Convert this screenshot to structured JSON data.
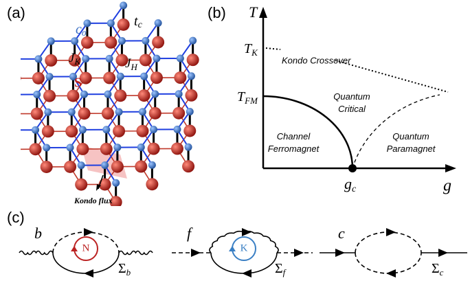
{
  "panel_a": {
    "label": "(a)",
    "c_sigma": {
      "main": "c",
      "sub": "σ"
    },
    "t_c": {
      "main": "t",
      "sub": "c"
    },
    "J_K": {
      "main": "J",
      "sub": "K"
    },
    "J_H": {
      "main": "J",
      "sub": "H"
    },
    "spin": "S⃗",
    "flux": "Kondo flux"
  },
  "panel_b": {
    "label": "(b)",
    "y_axis": "T",
    "x_axis": "g",
    "T_K": {
      "main": "T",
      "sub": "K"
    },
    "T_FM": {
      "main": "T",
      "sub": "FM"
    },
    "g_c": {
      "main": "g",
      "sub": "c"
    },
    "crossover": "Kondo Crossover",
    "critical": [
      "Quantum",
      "Critical"
    ],
    "ferromagnet": [
      "Channel",
      "Ferromagnet"
    ],
    "paramagnet": [
      "Quantum",
      "Paramagnet"
    ]
  },
  "panel_c": {
    "label": "(c)",
    "diagrams": [
      {
        "field": "b",
        "loop": "N",
        "self_energy": {
          "main": "Σ",
          "sub": "b"
        }
      },
      {
        "field": "f",
        "loop": "K",
        "self_energy": {
          "main": "Σ",
          "sub": "f"
        }
      },
      {
        "field": "c",
        "self_energy": {
          "main": "Σ",
          "sub": "c"
        }
      }
    ]
  }
}
